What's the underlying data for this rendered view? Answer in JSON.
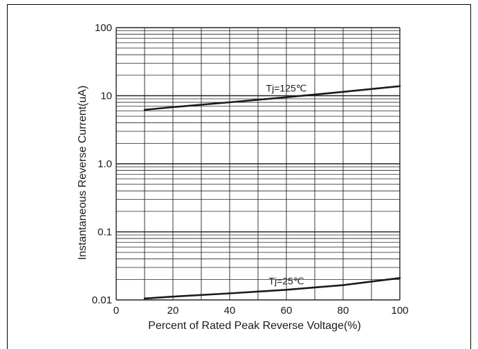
{
  "chart_data": {
    "type": "line",
    "title": "",
    "xlabel": "Percent of Rated Peak Reverse Voltage(%)",
    "ylabel": "Instantaneous Reverse Current(uA)",
    "xlim": [
      0,
      100
    ],
    "ylim": [
      0.01,
      100
    ],
    "yscale": "log",
    "grid": true,
    "x_ticks": [
      "0",
      "20",
      "40",
      "60",
      "80",
      "100"
    ],
    "y_ticks": [
      "0.01",
      "0.1",
      "1.0",
      "10",
      "100"
    ],
    "series": [
      {
        "name": "Tj=125℃",
        "x": [
          10,
          20,
          40,
          60,
          80,
          100
        ],
        "y": [
          6.2,
          6.8,
          8.0,
          9.5,
          11.4,
          13.8
        ]
      },
      {
        "name": "Tj=25℃",
        "x": [
          10,
          20,
          40,
          60,
          80,
          100
        ],
        "y": [
          0.0105,
          0.0112,
          0.0125,
          0.0141,
          0.0165,
          0.021
        ]
      }
    ],
    "colors": {
      "line": "#1a1a1a",
      "grid": "#222222"
    }
  }
}
